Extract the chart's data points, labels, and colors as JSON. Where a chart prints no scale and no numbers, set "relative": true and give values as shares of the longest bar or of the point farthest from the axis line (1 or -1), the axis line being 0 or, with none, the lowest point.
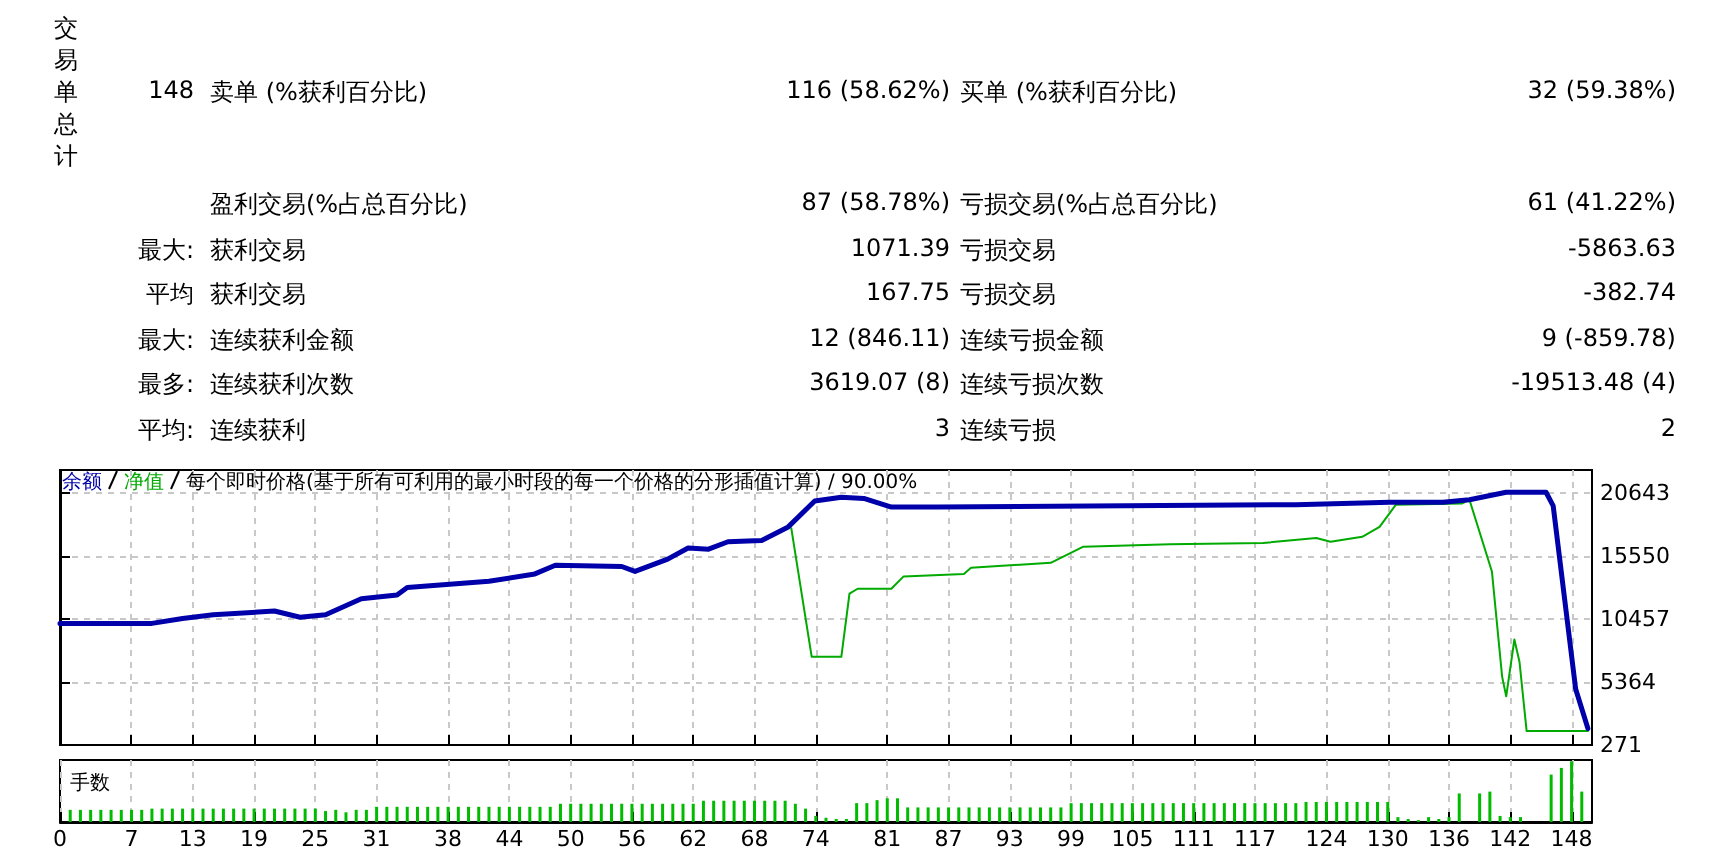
{
  "chart_data": [
    {
      "type": "other",
      "title": "交易单总计",
      "annotations": [
        "148",
        "卖单 (%获利百分比)",
        "116 (58.62%)",
        "买单 (%获利百分比)",
        "32 (59.38%)",
        "盈利交易(%占总百分比)",
        "87 (58.78%)",
        "亏损交易(%占总百分比)",
        "61 (41.22%)",
        "最大:",
        "获利交易",
        "1071.39",
        "亏损交易",
        "-5863.63",
        "平均",
        "获利交易",
        "167.75",
        "亏损交易",
        "-382.74",
        "最大:",
        "连续获利金额",
        "12 (846.11)",
        "连续亏损金额",
        "9 (-859.78)",
        "最多:",
        "连续获利次数",
        "3619.07 (8)",
        "连续亏损次数",
        "-19513.48 (4)",
        "平均:",
        "连续获利",
        "3",
        "连续亏损",
        "2"
      ]
    },
    {
      "type": "line",
      "title": "每个即时价格(基于所有可利用的最小时段的每一个价格的分形插值计算) / 90.00%",
      "series": [
        {
          "name": "余额",
          "color": "#0000aa",
          "x": [
            0,
            9,
            12,
            15,
            21,
            23.5,
            26,
            29.5,
            33,
            34,
            42,
            46.5,
            48.5,
            55,
            56.3,
            59.5,
            61.5,
            63.5,
            65.4,
            68.7,
            71.3,
            73.9,
            76.5,
            78.7,
            81.4,
            86,
            121,
            130.2,
            135.4,
            138,
            141.6,
            145.5,
            146.2,
            148.4,
            149.6
          ],
          "values": [
            10100,
            10100,
            10500,
            10800,
            11100,
            10600,
            10800,
            12100,
            12400,
            13000,
            13500,
            14100,
            14800,
            14700,
            14300,
            15300,
            16200,
            16100,
            16700,
            16800,
            17900,
            20000,
            20300,
            20200,
            19500,
            19500,
            19700,
            19900,
            19900,
            20100,
            20700,
            20700,
            19600,
            4800,
            1600
          ]
        },
        {
          "name": "净值",
          "color": "#00aa00",
          "x": [
            71.6,
            73.6,
            76.5,
            77.3,
            78.1,
            81.4,
            82.6,
            88.5,
            89.2,
            97,
            100.2,
            108.7,
            117.8,
            123,
            124.4,
            127.5,
            129.2,
            130.8,
            137.3,
            138,
            140.2,
            141.2,
            141.6,
            142.4,
            142.9,
            143.6,
            149.6
          ],
          "values": [
            17800,
            7400,
            7400,
            12500,
            12900,
            12900,
            13900,
            14100,
            14600,
            15000,
            16300,
            16500,
            16600,
            17000,
            16700,
            17100,
            17900,
            19700,
            19800,
            20100,
            14300,
            5800,
            4200,
            8800,
            7000,
            1400,
            1400
          ]
        }
      ],
      "xlim": [
        0,
        150
      ],
      "xticks": [
        0,
        7,
        13,
        19,
        25,
        31,
        38,
        44,
        50,
        56,
        62,
        68,
        74,
        81,
        87,
        93,
        99,
        105,
        111,
        117,
        124,
        130,
        136,
        142,
        148
      ],
      "ylim": [
        271,
        22500
      ],
      "yticks": [
        271,
        5364,
        10457,
        15550,
        20643
      ],
      "tick_labels": "y",
      "grid": true,
      "legend": "top left",
      "marker": "none",
      "line_style": "solid"
    },
    {
      "type": "bar",
      "title": "手数",
      "relative": true,
      "color": "#00bb00",
      "x": [
        1,
        2,
        3,
        4,
        5,
        6,
        7,
        8,
        9,
        10,
        11,
        12,
        13,
        14,
        15,
        16,
        17,
        18,
        19,
        20,
        21,
        22,
        23,
        24,
        25,
        26,
        27,
        28,
        29,
        30,
        31,
        32,
        33,
        34,
        35,
        36,
        37,
        38,
        39,
        40,
        41,
        42,
        43,
        44,
        45,
        46,
        47,
        48,
        49,
        50,
        51,
        52,
        53,
        54,
        55,
        56,
        57,
        58,
        59,
        60,
        61,
        62,
        63,
        64,
        65,
        66,
        67,
        68,
        69,
        70,
        71,
        72,
        73,
        74,
        75,
        76,
        77,
        78,
        79,
        80,
        81,
        82,
        83,
        84,
        85,
        86,
        87,
        88,
        89,
        90,
        91,
        92,
        93,
        94,
        95,
        96,
        97,
        98,
        99,
        100,
        101,
        102,
        103,
        104,
        105,
        106,
        107,
        108,
        109,
        110,
        111,
        112,
        113,
        114,
        115,
        116,
        117,
        118,
        119,
        120,
        121,
        122,
        123,
        124,
        125,
        126,
        127,
        128,
        129,
        130,
        131,
        132,
        133,
        134,
        135,
        136,
        137,
        138,
        139,
        140,
        141,
        142,
        143,
        144,
        145,
        146,
        147,
        148,
        149
      ],
      "values": [
        0.2,
        0.2,
        0.2,
        0.2,
        0.2,
        0.2,
        0.2,
        0.2,
        0.22,
        0.22,
        0.22,
        0.22,
        0.22,
        0.22,
        0.22,
        0.22,
        0.22,
        0.22,
        0.22,
        0.22,
        0.22,
        0.22,
        0.22,
        0.22,
        0.22,
        0.18,
        0.2,
        0.16,
        0.2,
        0.2,
        0.25,
        0.25,
        0.25,
        0.25,
        0.25,
        0.25,
        0.25,
        0.25,
        0.25,
        0.25,
        0.25,
        0.25,
        0.25,
        0.25,
        0.25,
        0.25,
        0.25,
        0.25,
        0.3,
        0.3,
        0.3,
        0.3,
        0.3,
        0.3,
        0.3,
        0.3,
        0.3,
        0.3,
        0.3,
        0.3,
        0.3,
        0.3,
        0.35,
        0.35,
        0.35,
        0.35,
        0.35,
        0.35,
        0.35,
        0.35,
        0.35,
        0.3,
        0.22,
        0.1,
        0.07,
        0.05,
        0.05,
        0.31,
        0.31,
        0.36,
        0.39,
        0.39,
        0.24,
        0.24,
        0.24,
        0.24,
        0.24,
        0.24,
        0.24,
        0.24,
        0.24,
        0.24,
        0.24,
        0.24,
        0.24,
        0.24,
        0.24,
        0.24,
        0.31,
        0.31,
        0.31,
        0.31,
        0.31,
        0.31,
        0.31,
        0.31,
        0.31,
        0.31,
        0.31,
        0.31,
        0.31,
        0.31,
        0.31,
        0.31,
        0.31,
        0.31,
        0.31,
        0.31,
        0.31,
        0.31,
        0.31,
        0.33,
        0.33,
        0.33,
        0.33,
        0.33,
        0.33,
        0.33,
        0.33,
        0.33,
        0.08,
        0.05,
        0.03,
        0.08,
        0.05,
        0.08,
        0.47,
        null,
        0.47,
        0.5,
        0.1,
        0.08,
        0.08,
        null,
        null,
        0.78,
        0.89,
        1,
        0.5
      ],
      "xlim": [
        0,
        150
      ],
      "xticks": [
        0,
        7,
        13,
        19,
        25,
        31,
        38,
        44,
        50,
        56,
        62,
        68,
        74,
        81,
        87,
        93,
        99,
        105,
        111,
        117,
        124,
        130,
        136,
        142,
        148
      ],
      "tick_labels": "x",
      "grid": "x"
    }
  ]
}
